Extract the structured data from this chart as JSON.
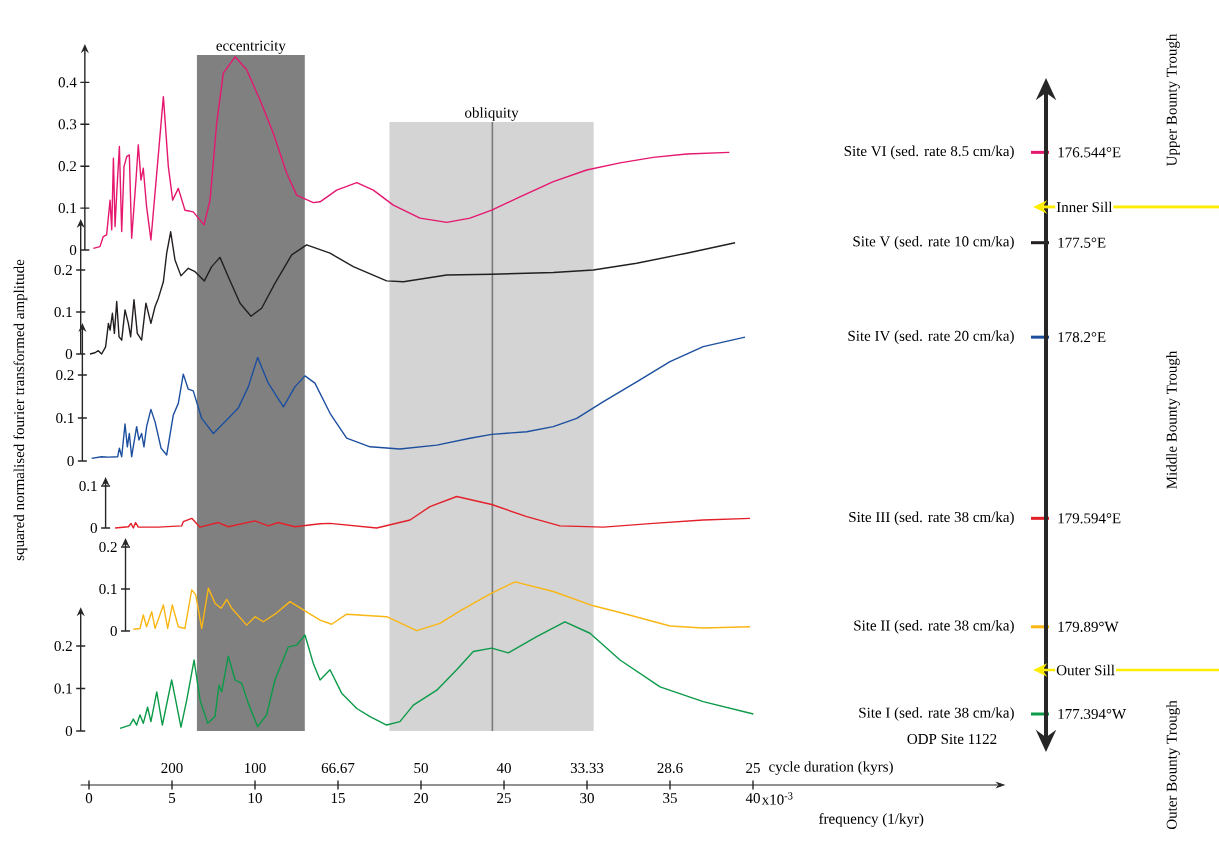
{
  "chart_data": [
    {
      "type": "line",
      "x": [
        0.26,
        0.66,
        0.86,
        1.06,
        1.27,
        1.37,
        1.47,
        1.57,
        1.67,
        1.83,
        1.97,
        2.11,
        2.27,
        2.43,
        2.57,
        2.71,
        2.83,
        2.97,
        3.13,
        3.27,
        3.47,
        3.73,
        4.08,
        4.48,
        4.78,
        5.04,
        5.38,
        5.78,
        6.28,
        6.93,
        7.29,
        7.69,
        8.09,
        8.8,
        9.5,
        10.3,
        11.1,
        11.91,
        12.51,
        13.51,
        13.92,
        14.92,
        16.13,
        17.13,
        18.33,
        19.94,
        21.55,
        22.95,
        24.26,
        25.96,
        27.97,
        29.98,
        31.99,
        33.99,
        36.0,
        38.57
      ],
      "series": [
        {
          "name": "Site VI (sed. rate 8.5 cm/ka)",
          "color": "#e5176f",
          "values": [
            0.004,
            0.008,
            0.032,
            0.036,
            0.119,
            0.048,
            0.219,
            0.056,
            0.135,
            0.247,
            0.044,
            0.199,
            0.223,
            0.227,
            0.028,
            0.103,
            0.167,
            0.251,
            0.167,
            0.195,
            0.103,
            0.024,
            0.183,
            0.366,
            0.199,
            0.119,
            0.147,
            0.095,
            0.091,
            0.06,
            0.119,
            0.302,
            0.422,
            0.461,
            0.43,
            0.358,
            0.279,
            0.183,
            0.131,
            0.113,
            0.115,
            0.143,
            0.161,
            0.143,
            0.107,
            0.076,
            0.066,
            0.076,
            0.095,
            0.127,
            0.163,
            0.191,
            0.208,
            0.221,
            0.229,
            0.233
          ]
        }
      ],
      "xlim": [
        -0.25,
        40
      ],
      "xticks": [
        0,
        5,
        10,
        15,
        20,
        25,
        30,
        35,
        40
      ],
      "ylim": [
        0,
        0.47
      ],
      "yticks": [
        0,
        0.1,
        0.2,
        0.3,
        0.4
      ],
      "tick_labels": "y",
      "annotations": [
        "176.544°E"
      ]
    },
    {
      "type": "line",
      "x": [
        0.06,
        0.36,
        0.56,
        0.76,
        1.0,
        1.17,
        1.27,
        1.41,
        1.53,
        1.67,
        1.81,
        1.97,
        2.17,
        2.37,
        2.51,
        2.71,
        2.91,
        3.17,
        3.43,
        3.73,
        3.98,
        4.18,
        4.48,
        4.68,
        4.92,
        5.18,
        5.54,
        5.98,
        6.39,
        6.95,
        7.39,
        7.89,
        8.39,
        9.1,
        9.76,
        10.4,
        11.2,
        12.21,
        13.11,
        14.52,
        15.92,
        17.93,
        18.94,
        21.55,
        24.26,
        27.97,
        30.38,
        32.99,
        36.0,
        38.92
      ],
      "series": [
        {
          "name": "Site V (sed. rate 10 cm/ka)",
          "color": "#231f20",
          "values": [
            0,
            0.003,
            0.008,
            0,
            0.017,
            0.073,
            0.057,
            0.097,
            0.049,
            0.125,
            0.041,
            0.033,
            0.105,
            0.073,
            0.041,
            0.129,
            0.049,
            0.033,
            0.121,
            0.073,
            0.113,
            0.133,
            0.172,
            0.24,
            0.291,
            0.224,
            0.186,
            0.204,
            0.196,
            0.174,
            0.208,
            0.23,
            0.184,
            0.121,
            0.09,
            0.109,
            0.168,
            0.236,
            0.26,
            0.24,
            0.208,
            0.174,
            0.172,
            0.188,
            0.19,
            0.194,
            0.2,
            0.216,
            0.24,
            0.265
          ]
        }
      ],
      "xlim": [
        -0.5,
        40
      ],
      "xticks": [
        0,
        5,
        10,
        15,
        20,
        25,
        30,
        35,
        40
      ],
      "ylim": [
        0,
        0.3
      ],
      "yticks": [
        0,
        0.1,
        0.2
      ],
      "tick_labels": "y",
      "annotations": [
        "177.5°E"
      ]
    },
    {
      "type": "line",
      "x": [
        0.16,
        0.76,
        1.17,
        1.73,
        1.83,
        1.97,
        2.17,
        2.31,
        2.43,
        2.57,
        2.87,
        3.01,
        3.17,
        3.31,
        3.47,
        3.73,
        3.98,
        4.34,
        4.68,
        5.08,
        5.38,
        5.68,
        5.98,
        6.28,
        6.79,
        7.49,
        8.19,
        8.99,
        9.6,
        10.16,
        10.8,
        11.71,
        12.41,
        13.01,
        13.61,
        14.52,
        15.52,
        16.93,
        18.73,
        20.95,
        22.95,
        24.26,
        26.37,
        27.97,
        29.38,
        30.99,
        32.99,
        35.0,
        37.0,
        39.52
      ],
      "series": [
        {
          "name": "Site IV (sed. rate 20 cm/ka)",
          "color": "#1d4f9f",
          "values": [
            0.006,
            0.01,
            0.009,
            0.01,
            0.03,
            0.01,
            0.086,
            0.033,
            0.064,
            0.01,
            0.08,
            0.049,
            0.064,
            0.033,
            0.08,
            0.12,
            0.091,
            0.03,
            0.014,
            0.107,
            0.134,
            0.202,
            0.167,
            0.163,
            0.099,
            0.064,
            0.091,
            0.123,
            0.173,
            0.241,
            0.181,
            0.126,
            0.173,
            0.198,
            0.181,
            0.111,
            0.053,
            0.033,
            0.028,
            0.037,
            0.053,
            0.062,
            0.068,
            0.08,
            0.099,
            0.138,
            0.184,
            0.231,
            0.266,
            0.288
          ]
        }
      ],
      "xlim": [
        -0.4,
        40
      ],
      "xticks": [
        0,
        5,
        10,
        15,
        20,
        25,
        30,
        35,
        40
      ],
      "ylim": [
        0,
        0.3
      ],
      "yticks": [
        0,
        0.1,
        0.2
      ],
      "tick_labels": "y",
      "ylabel": "squared normalised fourier transformed amplitude",
      "annotations": [
        "178.2°E"
      ]
    },
    {
      "type": "line",
      "x": [
        1.57,
        2.37,
        2.53,
        2.67,
        2.81,
        2.97,
        4.18,
        5.58,
        5.68,
        6.19,
        6.69,
        7.79,
        8.39,
        10.0,
        10.8,
        11.4,
        12.41,
        13.92,
        14.52,
        17.33,
        19.34,
        20.54,
        22.15,
        24.26,
        26.37,
        28.37,
        30.99,
        33.99,
        37.0,
        39.82
      ],
      "series": [
        {
          "name": "Site III (sed. rate 38 cm/ka)",
          "color": "#e3202a",
          "values": [
            0,
            0.003,
            0.011,
            0,
            0.013,
            0.002,
            0.002,
            0.005,
            0.015,
            0.023,
            0.002,
            0.013,
            0.003,
            0.017,
            0.005,
            0.013,
            0.003,
            0.01,
            0.011,
            0,
            0.019,
            0.051,
            0.075,
            0.056,
            0.027,
            0.005,
            0.002,
            0.011,
            0.019,
            0.023
          ]
        }
      ],
      "xlim": [
        1,
        40
      ],
      "xticks": [
        5,
        10,
        15,
        20,
        25,
        30,
        35,
        40
      ],
      "ylim": [
        0,
        0.1
      ],
      "yticks": [
        0,
        0.1
      ],
      "tick_labels": "y",
      "annotations": [
        "179.594°E"
      ]
    },
    {
      "type": "line",
      "x": [
        2.67,
        3.07,
        3.27,
        3.47,
        3.78,
        3.98,
        4.48,
        4.74,
        5.02,
        5.38,
        5.78,
        6.19,
        6.43,
        6.79,
        7.19,
        7.59,
        7.95,
        8.3,
        8.6,
        9.5,
        10.0,
        10.5,
        11.2,
        12.11,
        13.01,
        13.92,
        14.62,
        15.52,
        17.93,
        19.74,
        21.14,
        22.35,
        24.26,
        25.66,
        27.97,
        30.38,
        31.99,
        35.0,
        37.0,
        39.82
      ],
      "series": [
        {
          "name": "Site II (sed. rate 38 cm/ka)",
          "color": "#fab614",
          "values": [
            0.004,
            0.006,
            0.038,
            0.01,
            0.046,
            0.006,
            0.062,
            0.006,
            0.062,
            0.01,
            0.006,
            0.098,
            0.086,
            0.006,
            0.102,
            0.066,
            0.054,
            0.075,
            0.054,
            0.014,
            0.034,
            0.022,
            0.04,
            0.07,
            0.048,
            0.026,
            0.016,
            0.04,
            0.034,
            0.001,
            0.018,
            0.048,
            0.09,
            0.117,
            0.094,
            0.06,
            0.044,
            0.012,
            0.007,
            0.01
          ]
        }
      ],
      "xlim": [
        2.2,
        40
      ],
      "xticks": [
        5,
        10,
        15,
        20,
        25,
        30,
        35,
        40
      ],
      "ylim": [
        0,
        0.2
      ],
      "yticks": [
        0,
        0.1,
        0.2
      ],
      "tick_labels": "y",
      "annotations": [
        "179.89°W"
      ]
    },
    {
      "type": "line",
      "x": [
        1.87,
        2.47,
        2.67,
        2.87,
        3.07,
        3.27,
        3.53,
        3.73,
        4.08,
        4.42,
        4.98,
        5.18,
        5.54,
        5.89,
        6.33,
        6.69,
        7.15,
        7.59,
        7.83,
        7.99,
        8.39,
        8.8,
        9.2,
        9.6,
        10.16,
        10.7,
        11.2,
        12.01,
        12.51,
        13.01,
        13.51,
        13.92,
        14.52,
        15.22,
        16.13,
        16.93,
        17.93,
        18.73,
        19.54,
        20.95,
        22.15,
        23.15,
        24.26,
        25.26,
        26.97,
        28.67,
        30.18,
        31.99,
        34.4,
        37.0,
        40.02
      ],
      "series": [
        {
          "name": "Site I (sed. rate 38 cm/ka)",
          "color": "#0b9a48",
          "values": [
            0.006,
            0.014,
            0.028,
            0.014,
            0.038,
            0.018,
            0.056,
            0.022,
            0.092,
            0.014,
            0.12,
            0.081,
            0.009,
            0.073,
            0.167,
            0.073,
            0.018,
            0.034,
            0.108,
            0.092,
            0.176,
            0.12,
            0.112,
            0.065,
            0.01,
            0.038,
            0.12,
            0.198,
            0.202,
            0.226,
            0.159,
            0.12,
            0.144,
            0.089,
            0.053,
            0.034,
            0.014,
            0.022,
            0.061,
            0.096,
            0.144,
            0.187,
            0.195,
            0.184,
            0.222,
            0.257,
            0.23,
            0.167,
            0.104,
            0.069,
            0.04
          ]
        }
      ],
      "xlim": [
        -0.5,
        54.6
      ],
      "ylim": [
        0,
        0.27
      ],
      "yticks": [
        0,
        0.1,
        0.2
      ],
      "xticks": [
        0,
        5,
        10,
        15,
        20,
        25,
        30,
        35,
        40
      ],
      "xlabel": "frequency (1/kyr)",
      "bands": [
        {
          "axis": "x",
          "from": 6.5,
          "to": 13.0,
          "label": "eccentricity",
          "color": "#808080"
        },
        {
          "axis": "x",
          "from": 18.1,
          "to": 30.4,
          "label": "obliquity",
          "color": "#d4d4d4"
        }
      ],
      "ref_lines": [
        {
          "axis": "x",
          "value": 24.3,
          "color": "#7a7a7a"
        }
      ],
      "annotations": [
        "177.394°W",
        "ODP Site 1122",
        "200",
        "100",
        "66.67",
        "50",
        "40",
        "33.33",
        "28.6",
        "25",
        "cycle duration (kyrs)",
        "x10$^{-3}$"
      ]
    },
    {
      "type": "other",
      "annotations": [
        "Upper Bounty Trough",
        "Inner Sill",
        "Middle Bounty Trough",
        "Outer Sill",
        "Outer Bounty Trough"
      ]
    }
  ]
}
